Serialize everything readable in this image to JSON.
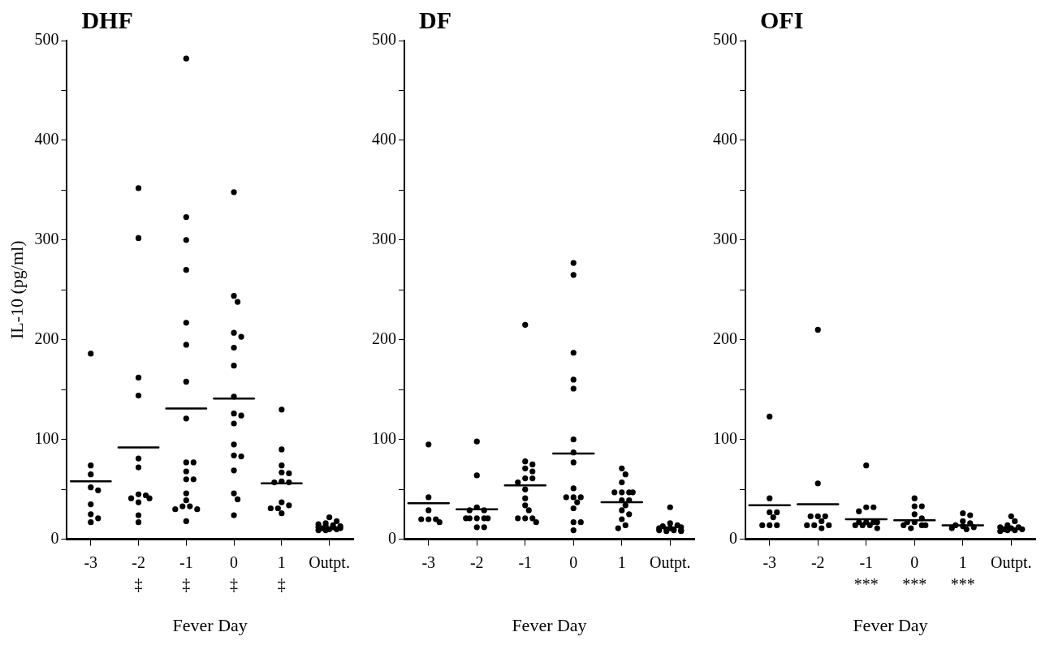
{
  "chart_data": [
    {
      "type": "scatter",
      "title": "DHF",
      "xlabel": "Fever Day",
      "ylabel": "IL-10 (pg/ml)",
      "categories": [
        "-3",
        "-2",
        "-1",
        "0",
        "1",
        "Outpt."
      ],
      "ylim": [
        0,
        500
      ],
      "yticks": [
        0,
        {
          "value": 50,
          "label": null
        },
        100,
        {
          "value": 150,
          "label": null
        },
        200,
        {
          "value": 250,
          "label": null
        },
        300,
        {
          "value": 350,
          "label": null
        },
        400,
        {
          "value": 450,
          "label": null
        },
        500
      ],
      "marker": "circle",
      "series": [
        {
          "color": "#000000",
          "x": [
            "-3",
            "-3",
            "-3",
            "-3",
            "-3",
            "-3",
            "-3",
            "-3",
            "-3",
            "-2",
            "-2",
            "-2",
            "-2",
            "-2",
            "-2",
            "-2",
            "-2",
            "-2",
            "-2",
            "-2",
            "-2",
            "-2",
            "-1",
            "-1",
            "-1",
            "-1",
            "-1",
            "-1",
            "-1",
            "-1",
            "-1",
            "-1",
            "-1",
            "-1",
            "-1",
            "-1",
            "-1",
            "-1",
            "-1",
            "-1",
            "-1",
            "-1",
            "0",
            "0",
            "0",
            "0",
            "0",
            "0",
            "0",
            "0",
            "0",
            "0",
            "0",
            "0",
            "0",
            "0",
            "0",
            "0",
            "0",
            "0",
            "1",
            "1",
            "1",
            "1",
            "1",
            "1",
            "1",
            "1",
            "1",
            "1",
            "1",
            "1",
            "1",
            "Outpt.",
            "Outpt.",
            "Outpt.",
            "Outpt.",
            "Outpt.",
            "Outpt.",
            "Outpt.",
            "Outpt.",
            "Outpt.",
            "Outpt.",
            "Outpt.",
            "Outpt.",
            "Outpt.",
            "Outpt.",
            "Outpt."
          ],
          "values": [
            186,
            74,
            65,
            52,
            49,
            35,
            25,
            21,
            17,
            352,
            302,
            162,
            144,
            81,
            72,
            45,
            44,
            41,
            41,
            37,
            24,
            17,
            482,
            323,
            300,
            270,
            217,
            195,
            158,
            121,
            77,
            77,
            68,
            60,
            60,
            46,
            39,
            33,
            33,
            30,
            30,
            18,
            348,
            244,
            238,
            207,
            203,
            192,
            174,
            143,
            126,
            124,
            116,
            95,
            84,
            83,
            69,
            46,
            40,
            24,
            130,
            90,
            74,
            67,
            66,
            58,
            57,
            57,
            37,
            34,
            31,
            31,
            26,
            22,
            18,
            16,
            15,
            14,
            13,
            13,
            12,
            12,
            11,
            11,
            10,
            10,
            9,
            9
          ]
        },
        {
          "type": "box",
          "color": "#000000",
          "boxes": [
            {
              "low": 58,
              "q1": 58,
              "median": 58,
              "q3": 58,
              "high": 58
            },
            {
              "low": 92,
              "q1": 92,
              "median": 92,
              "q3": 92,
              "high": 92
            },
            {
              "low": 131,
              "q1": 131,
              "median": 131,
              "q3": 131,
              "high": 131
            },
            {
              "low": 141,
              "q1": 141,
              "median": 141,
              "q3": 141,
              "high": 141
            },
            {
              "low": 56,
              "q1": 56,
              "median": 56,
              "q3": 56,
              "high": 56
            },
            null
          ]
        }
      ],
      "annotations": [
        "‡",
        "‡",
        "‡",
        "‡"
      ]
    },
    {
      "type": "scatter",
      "title": "DF",
      "xlabel": "Fever Day",
      "categories": [
        "-3",
        "-2",
        "-1",
        "0",
        "1",
        "Outpt."
      ],
      "ylim": [
        0,
        500
      ],
      "yticks": [
        0,
        {
          "value": 50,
          "label": null
        },
        100,
        {
          "value": 150,
          "label": null
        },
        200,
        {
          "value": 250,
          "label": null
        },
        300,
        {
          "value": 350,
          "label": null
        },
        400,
        {
          "value": 450,
          "label": null
        },
        500
      ],
      "marker": "circle",
      "series": [
        {
          "color": "#000000",
          "x": [
            "-3",
            "-3",
            "-3",
            "-3",
            "-3",
            "-3",
            "-3",
            "-2",
            "-2",
            "-2",
            "-2",
            "-2",
            "-2",
            "-2",
            "-2",
            "-2",
            "-2",
            "-2",
            "-2",
            "-1",
            "-1",
            "-1",
            "-1",
            "-1",
            "-1",
            "-1",
            "-1",
            "-1",
            "-1",
            "-1",
            "-1",
            "-1",
            "-1",
            "-1",
            "-1",
            "0",
            "0",
            "0",
            "0",
            "0",
            "0",
            "0",
            "0",
            "0",
            "0",
            "0",
            "0",
            "0",
            "0",
            "0",
            "0",
            "0",
            "1",
            "1",
            "1",
            "1",
            "1",
            "1",
            "1",
            "1",
            "1",
            "1",
            "1",
            "1",
            "1",
            "1",
            "1",
            "Outpt.",
            "Outpt.",
            "Outpt.",
            "Outpt.",
            "Outpt.",
            "Outpt.",
            "Outpt.",
            "Outpt.",
            "Outpt.",
            "Outpt.",
            "Outpt.",
            "Outpt.",
            "Outpt.",
            "Outpt."
          ],
          "values": [
            95,
            42,
            29,
            20,
            20,
            20,
            17,
            98,
            64,
            32,
            29,
            29,
            21,
            21,
            21,
            21,
            21,
            12,
            12,
            215,
            78,
            75,
            71,
            68,
            61,
            61,
            57,
            50,
            41,
            34,
            29,
            21,
            21,
            21,
            17,
            277,
            265,
            187,
            160,
            151,
            100,
            87,
            77,
            51,
            42,
            42,
            42,
            37,
            31,
            17,
            17,
            9,
            71,
            65,
            57,
            47,
            47,
            47,
            47,
            39,
            39,
            34,
            29,
            25,
            20,
            14,
            11,
            32,
            16,
            14,
            13,
            12,
            11,
            11,
            10,
            10,
            9,
            9,
            9,
            8,
            8
          ]
        },
        {
          "type": "box",
          "color": "#000000",
          "boxes": [
            {
              "low": 36,
              "q1": 36,
              "median": 36,
              "q3": 36,
              "high": 36
            },
            {
              "low": 30,
              "q1": 30,
              "median": 30,
              "q3": 30,
              "high": 30
            },
            {
              "low": 54,
              "q1": 54,
              "median": 54,
              "q3": 54,
              "high": 54
            },
            {
              "low": 86,
              "q1": 86,
              "median": 86,
              "q3": 86,
              "high": 86
            },
            {
              "low": 37,
              "q1": 37,
              "median": 37,
              "q3": 37,
              "high": 37
            },
            null
          ]
        }
      ]
    },
    {
      "type": "scatter",
      "title": "OFI",
      "xlabel": "Fever Day",
      "categories": [
        "-3",
        "-2",
        "-1",
        "0",
        "1",
        "Outpt."
      ],
      "ylim": [
        0,
        500
      ],
      "yticks": [
        0,
        {
          "value": 50,
          "label": null
        },
        100,
        {
          "value": 150,
          "label": null
        },
        200,
        {
          "value": 250,
          "label": null
        },
        300,
        {
          "value": 350,
          "label": null
        },
        400,
        {
          "value": 450,
          "label": null
        },
        500
      ],
      "marker": "circle",
      "series": [
        {
          "color": "#000000",
          "x": [
            "-3",
            "-3",
            "-3",
            "-3",
            "-3",
            "-3",
            "-3",
            "-3",
            "-2",
            "-2",
            "-2",
            "-2",
            "-2",
            "-2",
            "-2",
            "-2",
            "-2",
            "-2",
            "-1",
            "-1",
            "-1",
            "-1",
            "-1",
            "-1",
            "-1",
            "-1",
            "-1",
            "-1",
            "-1",
            "-1",
            "0",
            "0",
            "0",
            "0",
            "0",
            "0",
            "0",
            "0",
            "0",
            "0",
            "0",
            "1",
            "1",
            "1",
            "1",
            "1",
            "1",
            "1",
            "1",
            "1",
            "Outpt.",
            "Outpt.",
            "Outpt.",
            "Outpt.",
            "Outpt.",
            "Outpt.",
            "Outpt.",
            "Outpt.",
            "Outpt.",
            "Outpt.",
            "Outpt."
          ],
          "values": [
            123,
            41,
            27,
            27,
            22,
            14,
            14,
            14,
            210,
            56,
            23,
            23,
            23,
            18,
            14,
            14,
            14,
            11,
            74,
            32,
            32,
            28,
            17,
            17,
            17,
            17,
            14,
            14,
            14,
            11,
            41,
            33,
            33,
            25,
            21,
            17,
            17,
            14,
            14,
            14,
            11,
            26,
            24,
            18,
            16,
            14,
            13,
            12,
            11,
            10,
            23,
            18,
            14,
            12,
            12,
            11,
            10,
            10,
            9,
            9,
            8
          ]
        },
        {
          "type": "box",
          "color": "#000000",
          "boxes": [
            {
              "low": 34,
              "q1": 34,
              "median": 34,
              "q3": 34,
              "high": 34
            },
            {
              "low": 35,
              "q1": 35,
              "median": 35,
              "q3": 35,
              "high": 35
            },
            {
              "low": 20,
              "q1": 20,
              "median": 20,
              "q3": 20,
              "high": 20
            },
            {
              "low": 19,
              "q1": 19,
              "median": 19,
              "q3": 19,
              "high": 19
            },
            {
              "low": 14,
              "q1": 14,
              "median": 14,
              "q3": 14,
              "high": 14
            },
            null
          ]
        }
      ],
      "annotations": [
        "***",
        "***",
        "***"
      ]
    }
  ]
}
